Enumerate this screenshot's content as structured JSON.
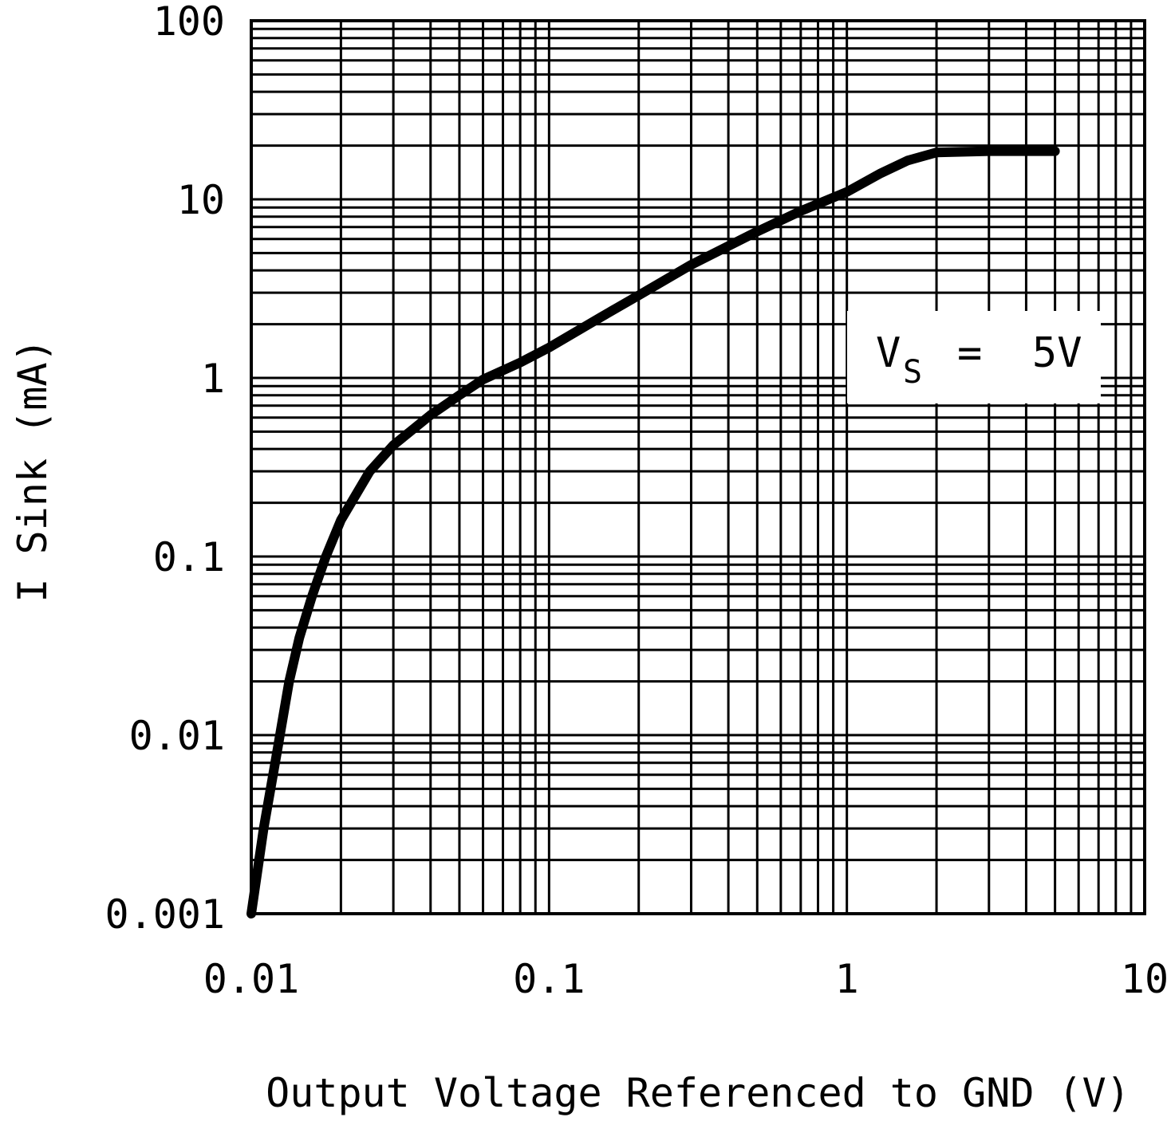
{
  "chart_data": {
    "type": "line",
    "title": "",
    "xlabel": "Output Voltage Referenced to GND (V)",
    "ylabel": "I Sink (mA)",
    "x_scale": "log",
    "y_scale": "log",
    "xlim": [
      0.01,
      10
    ],
    "ylim": [
      0.001,
      100
    ],
    "grid": true,
    "legend": "none",
    "x_tick_labels": [
      "0.01",
      "0.1",
      "1",
      "10"
    ],
    "y_tick_labels": [
      "0.001",
      "0.01",
      "0.1",
      "1",
      "10",
      "100"
    ],
    "annotation": {
      "main": "V",
      "sub": "S",
      "rest": "=  5V",
      "position": "upper-right"
    },
    "series": [
      {
        "name": "",
        "color": "#000000",
        "x": [
          0.01,
          0.011,
          0.0122,
          0.0134,
          0.0145,
          0.016,
          0.0178,
          0.02,
          0.025,
          0.03,
          0.04,
          0.05,
          0.06,
          0.08,
          0.1,
          0.15,
          0.2,
          0.3,
          0.5,
          0.7,
          1.0,
          1.3,
          1.6,
          2.0,
          3.0,
          4.0,
          5.0
        ],
        "y": [
          0.001,
          0.003,
          0.008,
          0.02,
          0.035,
          0.06,
          0.1,
          0.16,
          0.3,
          0.42,
          0.62,
          0.8,
          0.98,
          1.22,
          1.48,
          2.2,
          2.9,
          4.3,
          6.6,
          8.6,
          11.0,
          14.0,
          16.5,
          18.3,
          18.6,
          18.6,
          18.6
        ]
      }
    ]
  }
}
